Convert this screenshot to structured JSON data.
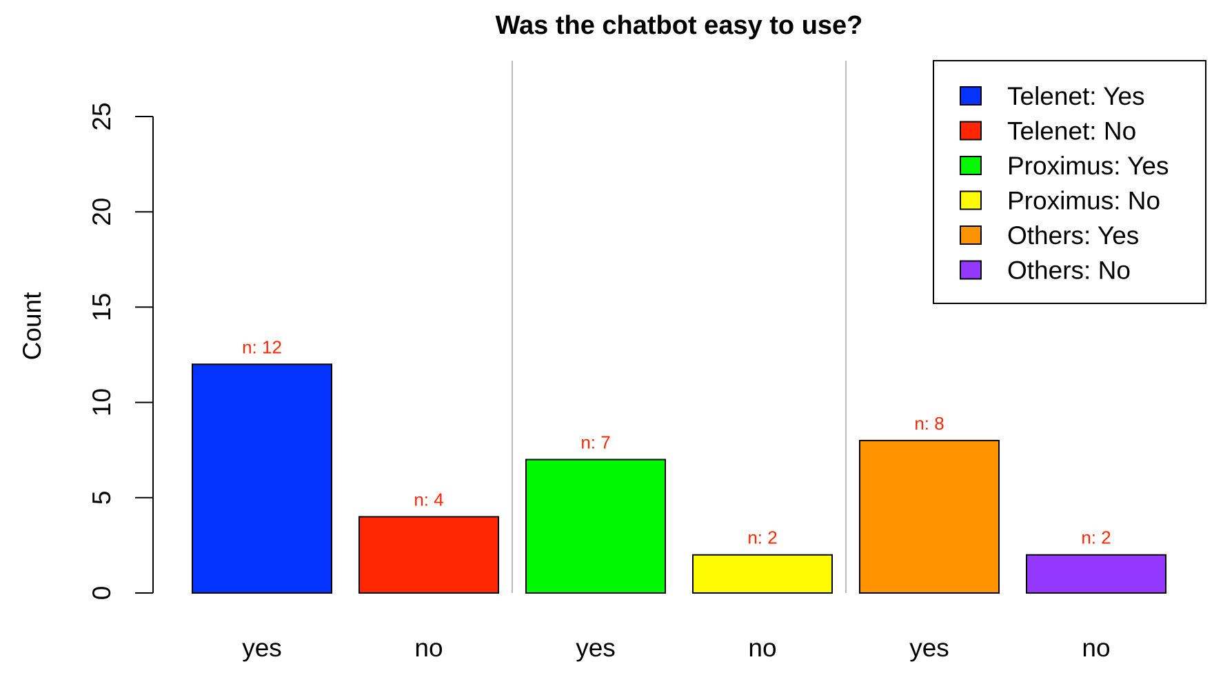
{
  "chart_data": {
    "type": "bar",
    "title": "Was the chatbot easy to use?",
    "xlabel": "",
    "ylabel": "Count",
    "ylim": [
      0,
      25
    ],
    "yticks": [
      0,
      5,
      10,
      15,
      20,
      25
    ],
    "grid": false,
    "legend_position": "top-right",
    "categories": [
      "yes",
      "no",
      "yes",
      "no",
      "yes",
      "no"
    ],
    "groups": [
      "Telenet",
      "Proximus",
      "Others"
    ],
    "series": [
      {
        "name": "Telenet: Yes",
        "value": 12,
        "color": "#0433ff",
        "label": "n: 12"
      },
      {
        "name": "Telenet: No",
        "value": 4,
        "color": "#ff2600",
        "label": "n: 4"
      },
      {
        "name": "Proximus: Yes",
        "value": 7,
        "color": "#00f900",
        "label": "n: 7"
      },
      {
        "name": "Proximus: No",
        "value": 2,
        "color": "#fffb00",
        "label": "n: 2"
      },
      {
        "name": "Others: Yes",
        "value": 8,
        "color": "#ff9300",
        "label": "n: 8"
      },
      {
        "name": "Others: No",
        "value": 2,
        "color": "#9437ff",
        "label": "n: 2"
      }
    ],
    "data_label_color": "#ff2600",
    "separator_color": "#bbbbbb"
  }
}
